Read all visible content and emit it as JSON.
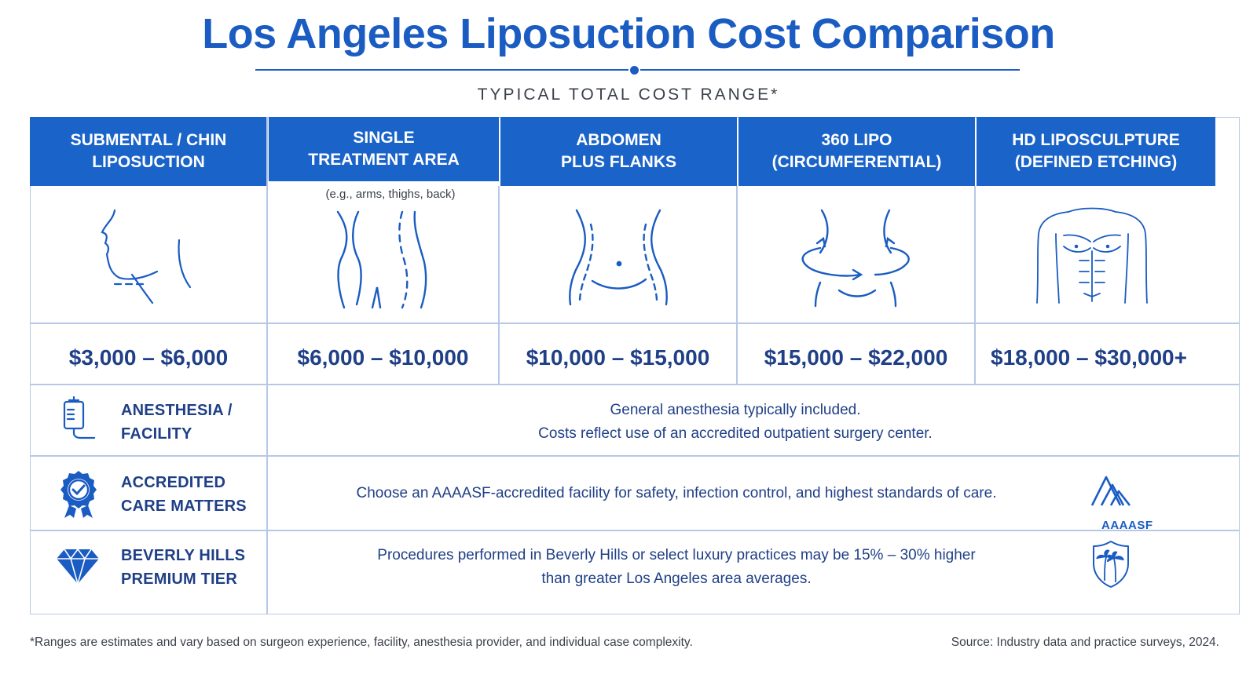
{
  "title": "Los Angeles Liposuction Cost Comparison",
  "subtitle": "TYPICAL TOTAL COST RANGE*",
  "colors": {
    "accent": "#1a63c8",
    "text": "#1f3f86",
    "border": "#b6c8e6"
  },
  "columns": [
    {
      "line1": "SUBMENTAL / CHIN",
      "line2": "LIPOSUCTION",
      "note": "",
      "price": "$3,000 – $6,000",
      "icon": "chin-profile-icon"
    },
    {
      "line1": "SINGLE",
      "line2": "TREATMENT AREA",
      "note": "(e.g., arms, thighs, back)",
      "price": "$6,000 – $10,000",
      "icon": "legs-outline-icon"
    },
    {
      "line1": "ABDOMEN",
      "line2": "PLUS FLANKS",
      "note": "",
      "price": "$10,000 – $15,000",
      "icon": "abdomen-outline-icon"
    },
    {
      "line1": "360 LIPO",
      "line2": "(CIRCUMFERENTIAL)",
      "note": "",
      "price": "$15,000 – $22,000",
      "icon": "torso-rotation-icon"
    },
    {
      "line1": "HD LIPOSCULPTURE",
      "line2": "(DEFINED ETCHING)",
      "note": "",
      "price": "$18,000 – $30,000+",
      "icon": "muscular-torso-icon"
    }
  ],
  "rows": [
    {
      "line1": "ANESTHESIA /",
      "line2": "FACILITY",
      "text1": "General anesthesia typically included.",
      "text2": "Costs reflect use of an accredited outpatient surgery center.",
      "icon": "iv-bag-icon"
    },
    {
      "line1": "ACCREDITED",
      "line2": "CARE MATTERS",
      "text1": "Choose an AAAASF-accredited facility for safety, infection control, and highest standards of care.",
      "text2": "",
      "icon": "award-badge-icon",
      "badge": "AAAASF",
      "badge_icon": "aaaasf-logo-icon"
    },
    {
      "line1": "BEVERLY HILLS",
      "line2": "PREMIUM TIER",
      "text1": "Procedures performed in Beverly Hills or select luxury practices may be 15% – 30% higher",
      "text2": "than greater Los Angeles area averages.",
      "icon": "diamond-icon",
      "badge_icon": "palm-tree-shield-icon"
    }
  ],
  "footnote": "*Ranges are estimates and vary based on surgeon experience, facility, anesthesia provider, and individual case complexity.",
  "source": "Source: Industry data and practice surveys, 2024."
}
